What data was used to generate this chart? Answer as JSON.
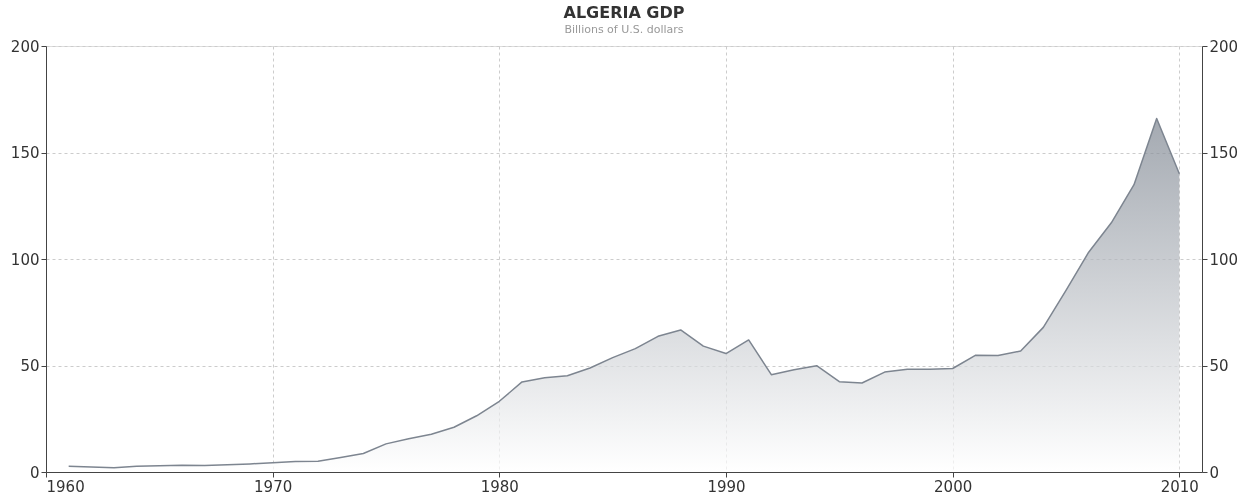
{
  "chart_data": {
    "type": "area",
    "title": "ALGERIA GDP",
    "subtitle": "Billions of U.S. dollars",
    "x": [
      1961,
      1962,
      1963,
      1964,
      1965,
      1966,
      1967,
      1968,
      1969,
      1970,
      1971,
      1972,
      1973,
      1974,
      1975,
      1976,
      1977,
      1978,
      1979,
      1980,
      1981,
      1982,
      1983,
      1984,
      1985,
      1986,
      1987,
      1988,
      1989,
      1990,
      1991,
      1992,
      1993,
      1994,
      1995,
      1996,
      1997,
      1998,
      1999,
      2000,
      2001,
      2002,
      2003,
      2004,
      2005,
      2006,
      2007,
      2008,
      2009,
      2010
    ],
    "series": [
      {
        "color": "#7d8590",
        "values": [
          2.7,
          2.4,
          2.0,
          2.7,
          2.9,
          3.2,
          3.1,
          3.4,
          3.8,
          4.3,
          4.9,
          5.1,
          6.8,
          8.7,
          13.2,
          15.6,
          17.7,
          21.0,
          26.4,
          33.2,
          42.3,
          44.3,
          45.2,
          48.8,
          53.7,
          57.9,
          63.7,
          66.7,
          59.1,
          55.6,
          62.0,
          45.7,
          48.0,
          49.9,
          42.4,
          41.8,
          46.9,
          48.2,
          48.2,
          48.6,
          54.8,
          54.7,
          56.8,
          67.9,
          85.3,
          103.2,
          117.0,
          134.9,
          166,
          140
        ]
      }
    ],
    "xlim": [
      1960,
      2011
    ],
    "xticks": [
      1960,
      1970,
      1980,
      1990,
      2000,
      2010
    ],
    "ylim": [
      0,
      200
    ],
    "yticks": [
      0,
      50,
      100,
      150,
      200
    ],
    "y2lim": [
      0,
      200
    ],
    "y2ticks": [
      0,
      50,
      100,
      150,
      200
    ],
    "grid": true
  }
}
